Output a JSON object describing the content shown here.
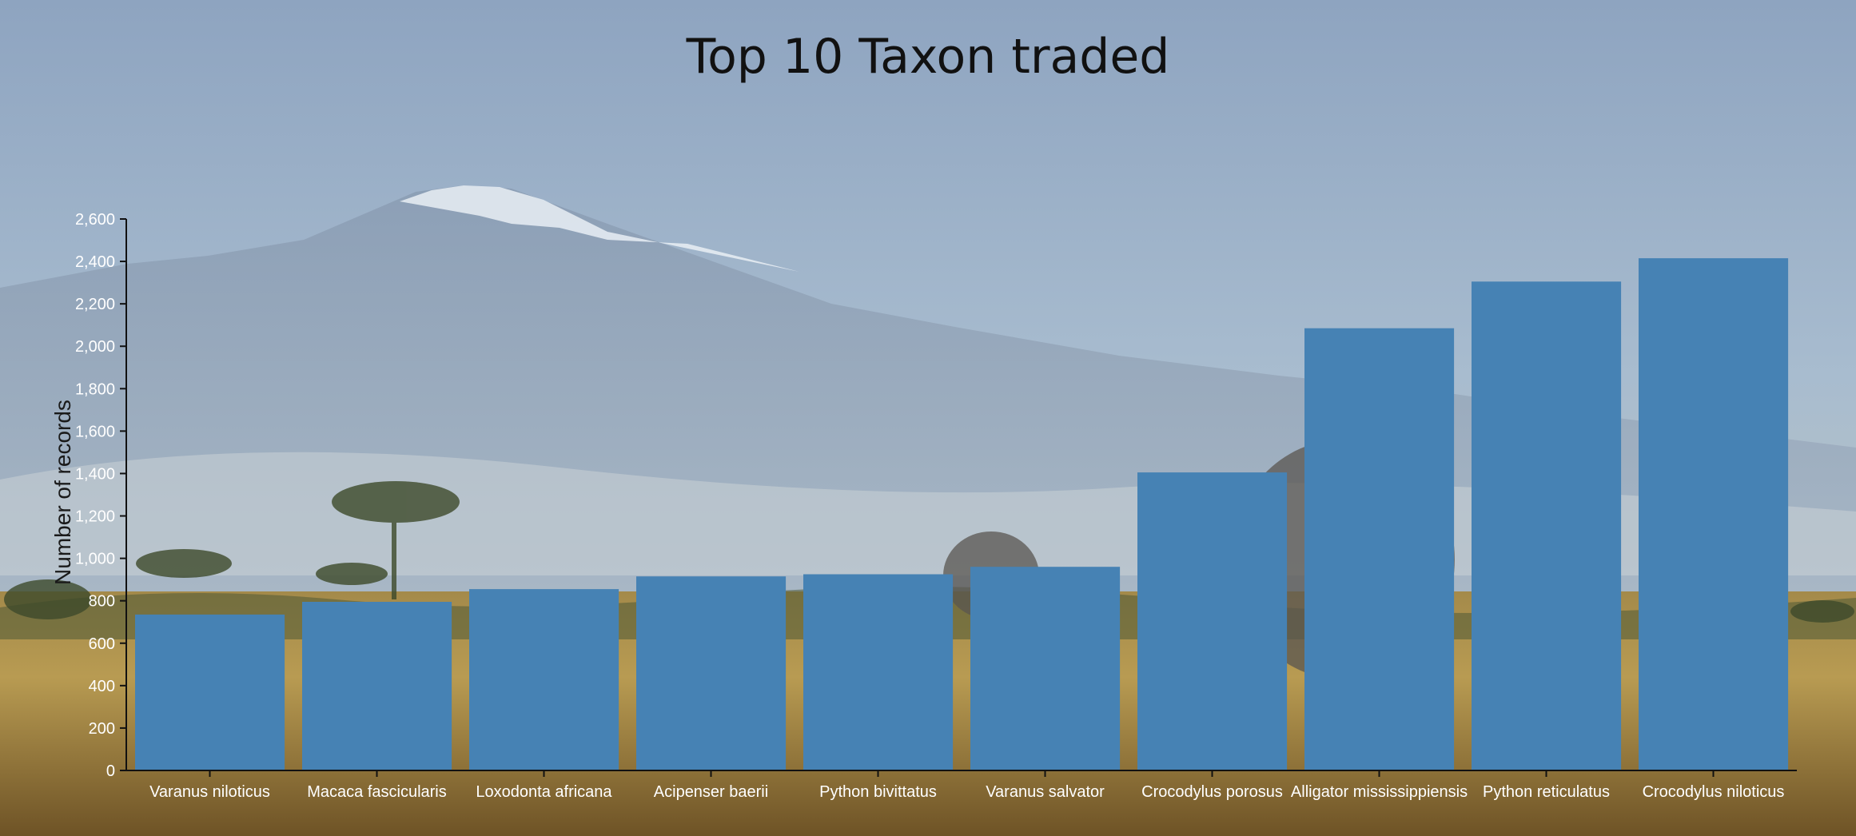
{
  "chart_data": {
    "type": "bar",
    "title": "Top 10 Taxon traded",
    "ylabel": "Number of records",
    "xlabel": "",
    "ylim": [
      0,
      2600
    ],
    "yticks": [
      0,
      200,
      400,
      600,
      800,
      1000,
      1200,
      1400,
      1600,
      1800,
      2000,
      2200,
      2400,
      2600
    ],
    "ytick_labels": [
      "0",
      "200",
      "400",
      "600",
      "800",
      "1,000",
      "1,200",
      "1,400",
      "1,600",
      "1,800",
      "2,000",
      "2,200",
      "2,400",
      "2,600"
    ],
    "categories": [
      "Varanus niloticus",
      "Macaca fascicularis",
      "Loxodonta africana",
      "Acipenser baerii",
      "Python bivittatus",
      "Varanus salvator",
      "Crocodylus porosus",
      "Alligator mississippiensis",
      "Python reticulatus",
      "Crocodylus niloticus"
    ],
    "values": [
      735,
      795,
      855,
      915,
      925,
      960,
      1405,
      2085,
      2305,
      2415
    ],
    "bar_color": "#4682b4",
    "axis_color": "#111111",
    "grid": false,
    "background": "photo of mountain savanna with elephants"
  }
}
